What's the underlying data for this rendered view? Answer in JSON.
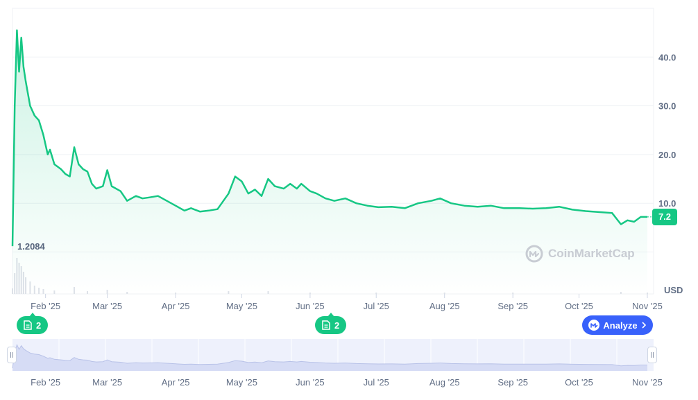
{
  "chart_data": {
    "type": "area",
    "currency": "USD",
    "last_price": "7.2",
    "period_low_label": "1.2084",
    "y_ticks": [
      "10.0",
      "20.0",
      "30.0",
      "40.0"
    ],
    "ylim": [
      -8.6,
      50
    ],
    "xlim": [
      "2025-01-17",
      "2025-11-01"
    ],
    "x_ticks": [
      {
        "label": "Feb '25",
        "date": "2025-02-01"
      },
      {
        "label": "Mar '25",
        "date": "2025-03-01"
      },
      {
        "label": "Apr '25",
        "date": "2025-04-01"
      },
      {
        "label": "May '25",
        "date": "2025-05-01"
      },
      {
        "label": "Jun '25",
        "date": "2025-06-01"
      },
      {
        "label": "Jul '25",
        "date": "2025-07-01"
      },
      {
        "label": "Aug '25",
        "date": "2025-08-01"
      },
      {
        "label": "Sep '25",
        "date": "2025-09-01"
      },
      {
        "label": "Oct '25",
        "date": "2025-10-01"
      },
      {
        "label": "Nov '25",
        "date": "2025-11-01"
      }
    ],
    "series": [
      {
        "line_color": "#16c784",
        "points": [
          [
            "2025-01-17",
            1.2
          ],
          [
            "2025-01-18",
            30
          ],
          [
            "2025-01-19",
            45.5
          ],
          [
            "2025-01-20",
            37
          ],
          [
            "2025-01-21",
            44
          ],
          [
            "2025-01-22",
            38
          ],
          [
            "2025-01-23",
            35
          ],
          [
            "2025-01-25",
            30
          ],
          [
            "2025-01-27",
            28
          ],
          [
            "2025-01-29",
            27
          ],
          [
            "2025-01-31",
            24
          ],
          [
            "2025-02-02",
            20
          ],
          [
            "2025-02-03",
            21
          ],
          [
            "2025-02-05",
            18
          ],
          [
            "2025-02-08",
            17
          ],
          [
            "2025-02-10",
            16
          ],
          [
            "2025-02-12",
            15.5
          ],
          [
            "2025-02-14",
            21.5
          ],
          [
            "2025-02-16",
            18
          ],
          [
            "2025-02-18",
            17
          ],
          [
            "2025-02-20",
            16.5
          ],
          [
            "2025-02-22",
            14
          ],
          [
            "2025-02-24",
            13
          ],
          [
            "2025-02-27",
            13.5
          ],
          [
            "2025-03-01",
            16.8
          ],
          [
            "2025-03-03",
            13.5
          ],
          [
            "2025-03-07",
            12.5
          ],
          [
            "2025-03-10",
            10.5
          ],
          [
            "2025-03-14",
            11.5
          ],
          [
            "2025-03-17",
            11
          ],
          [
            "2025-03-20",
            11.2
          ],
          [
            "2025-03-24",
            11.5
          ],
          [
            "2025-03-28",
            10.5
          ],
          [
            "2025-04-01",
            9.5
          ],
          [
            "2025-04-05",
            8.5
          ],
          [
            "2025-04-08",
            9
          ],
          [
            "2025-04-12",
            8.3
          ],
          [
            "2025-04-16",
            8.5
          ],
          [
            "2025-04-20",
            8.8
          ],
          [
            "2025-04-25",
            12
          ],
          [
            "2025-04-28",
            15.5
          ],
          [
            "2025-05-01",
            14.5
          ],
          [
            "2025-05-04",
            12
          ],
          [
            "2025-05-07",
            12.8
          ],
          [
            "2025-05-10",
            11.5
          ],
          [
            "2025-05-13",
            15
          ],
          [
            "2025-05-16",
            13.5
          ],
          [
            "2025-05-20",
            13
          ],
          [
            "2025-05-23",
            14
          ],
          [
            "2025-05-26",
            13
          ],
          [
            "2025-05-28",
            14
          ],
          [
            "2025-06-01",
            12.5
          ],
          [
            "2025-06-04",
            12
          ],
          [
            "2025-06-08",
            11
          ],
          [
            "2025-06-12",
            10.5
          ],
          [
            "2025-06-17",
            11
          ],
          [
            "2025-06-22",
            10
          ],
          [
            "2025-06-27",
            9.5
          ],
          [
            "2025-07-02",
            9.2
          ],
          [
            "2025-07-08",
            9.3
          ],
          [
            "2025-07-14",
            9
          ],
          [
            "2025-07-20",
            10
          ],
          [
            "2025-07-26",
            10.5
          ],
          [
            "2025-07-30",
            11
          ],
          [
            "2025-08-04",
            10
          ],
          [
            "2025-08-10",
            9.5
          ],
          [
            "2025-08-16",
            9.3
          ],
          [
            "2025-08-22",
            9.5
          ],
          [
            "2025-08-28",
            9
          ],
          [
            "2025-09-04",
            9
          ],
          [
            "2025-09-10",
            8.9
          ],
          [
            "2025-09-16",
            9
          ],
          [
            "2025-09-22",
            9.3
          ],
          [
            "2025-09-28",
            8.7
          ],
          [
            "2025-10-04",
            8.4
          ],
          [
            "2025-10-10",
            8.2
          ],
          [
            "2025-10-16",
            8.0
          ],
          [
            "2025-10-20",
            5.7
          ],
          [
            "2025-10-23",
            6.5
          ],
          [
            "2025-10-26",
            6.2
          ],
          [
            "2025-10-29",
            7.2
          ],
          [
            "2025-11-01",
            7.2
          ]
        ]
      }
    ],
    "volume": [
      [
        "2025-01-17",
        8
      ],
      [
        "2025-01-18",
        30
      ],
      [
        "2025-01-19",
        52
      ],
      [
        "2025-01-20",
        45
      ],
      [
        "2025-01-21",
        40
      ],
      [
        "2025-01-22",
        32
      ],
      [
        "2025-01-23",
        24
      ],
      [
        "2025-01-25",
        18
      ],
      [
        "2025-01-27",
        12
      ],
      [
        "2025-01-29",
        9
      ],
      [
        "2025-01-31",
        7
      ],
      [
        "2025-02-05",
        5
      ],
      [
        "2025-02-14",
        10
      ],
      [
        "2025-02-20",
        4
      ],
      [
        "2025-03-01",
        6
      ],
      [
        "2025-03-10",
        3
      ],
      [
        "2025-04-01",
        2
      ],
      [
        "2025-04-25",
        4
      ],
      [
        "2025-05-13",
        4
      ],
      [
        "2025-06-01",
        2
      ],
      [
        "2025-07-01",
        2
      ],
      [
        "2025-08-01",
        2
      ],
      [
        "2025-09-01",
        2
      ],
      [
        "2025-10-20",
        3
      ],
      [
        "2025-11-01",
        2
      ]
    ],
    "grid": true,
    "watermark": "CoinMarketCap"
  },
  "navigator": {
    "x_ticks": [
      "Feb '25",
      "Mar '25",
      "Apr '25",
      "May '25",
      "Jun '25",
      "Jul '25",
      "Aug '25",
      "Sep '25",
      "Oct '25",
      "Nov '25"
    ]
  },
  "news_markers": [
    {
      "count": "2",
      "date": "2025-01-22",
      "icon": "document-icon"
    },
    {
      "count": "2",
      "date": "2025-06-03",
      "icon": "document-icon"
    }
  ],
  "analyze_button": {
    "label": "Analyze",
    "color": "#3861fb"
  }
}
